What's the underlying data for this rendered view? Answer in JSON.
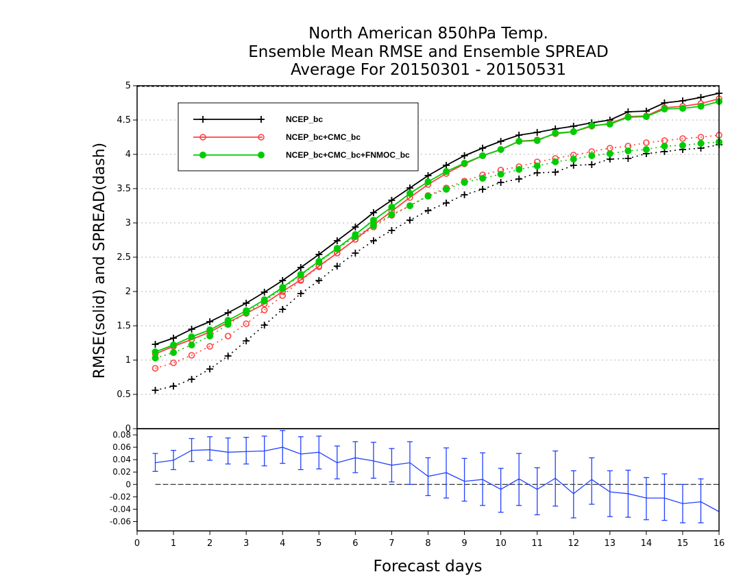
{
  "title_lines": [
    "North American 850hPa Temp.",
    "Ensemble Mean RMSE and Ensemble SPREAD",
    "Average For 20150301 - 20150531"
  ],
  "chart_data": [
    {
      "type": "line",
      "ylabel": "RMSE(solid)  and  SPREAD(dash)",
      "xlim": [
        0,
        16
      ],
      "ylim": [
        0,
        5
      ],
      "yticks": [
        0,
        0.5,
        1,
        1.5,
        2,
        2.5,
        3,
        3.5,
        4,
        4.5,
        5
      ],
      "grid": true,
      "legend_position": "top-left",
      "x": [
        0.5,
        1,
        1.5,
        2,
        2.5,
        3,
        3.5,
        4,
        4.5,
        5,
        5.5,
        6,
        6.5,
        7,
        7.5,
        8,
        8.5,
        9,
        9.5,
        10,
        10.5,
        11,
        11.5,
        12,
        12.5,
        13,
        13.5,
        14,
        14.5,
        15,
        15.5,
        16
      ],
      "series": [
        {
          "name": "NCEP_bc",
          "color": "#000000",
          "marker": "plus",
          "rmse": [
            1.23,
            1.32,
            1.45,
            1.56,
            1.69,
            1.83,
            1.99,
            2.16,
            2.35,
            2.54,
            2.74,
            2.94,
            3.15,
            3.33,
            3.51,
            3.69,
            3.84,
            3.98,
            4.09,
            4.19,
            4.28,
            4.32,
            4.37,
            4.41,
            4.46,
            4.5,
            4.62,
            4.63,
            4.75,
            4.78,
            4.83,
            4.89
          ],
          "spread": [
            0.56,
            0.62,
            0.72,
            0.87,
            1.06,
            1.28,
            1.51,
            1.74,
            1.97,
            2.16,
            2.37,
            2.56,
            2.74,
            2.89,
            3.04,
            3.18,
            3.29,
            3.41,
            3.49,
            3.59,
            3.64,
            3.73,
            3.74,
            3.84,
            3.85,
            3.93,
            3.94,
            4.01,
            4.04,
            4.07,
            4.09,
            4.14
          ]
        },
        {
          "name": "NCEP_bc+CMC_bc",
          "color": "#ff4040",
          "marker": "open-circle",
          "rmse": [
            1.09,
            1.2,
            1.3,
            1.41,
            1.55,
            1.68,
            1.82,
            2.0,
            2.17,
            2.37,
            2.56,
            2.76,
            2.97,
            3.17,
            3.37,
            3.56,
            3.72,
            3.86,
            3.98,
            4.07,
            4.19,
            4.21,
            4.3,
            4.33,
            4.41,
            4.45,
            4.55,
            4.56,
            4.68,
            4.7,
            4.74,
            4.81
          ],
          "spread": [
            0.88,
            0.96,
            1.07,
            1.2,
            1.35,
            1.53,
            1.73,
            1.94,
            2.16,
            2.36,
            2.56,
            2.76,
            2.94,
            3.11,
            3.25,
            3.4,
            3.51,
            3.61,
            3.7,
            3.77,
            3.82,
            3.89,
            3.94,
            3.99,
            4.04,
            4.09,
            4.12,
            4.17,
            4.2,
            4.23,
            4.25,
            4.28
          ]
        },
        {
          "name": "NCEP_bc+CMC_bc+FNMOC_bc",
          "color": "#00cc00",
          "marker": "filled-circle",
          "rmse": [
            1.12,
            1.22,
            1.34,
            1.44,
            1.58,
            1.72,
            1.88,
            2.06,
            2.25,
            2.44,
            2.63,
            2.83,
            3.04,
            3.23,
            3.43,
            3.6,
            3.75,
            3.87,
            3.98,
            4.07,
            4.19,
            4.2,
            4.31,
            4.33,
            4.42,
            4.44,
            4.54,
            4.55,
            4.66,
            4.67,
            4.7,
            4.77
          ],
          "spread": [
            1.03,
            1.11,
            1.22,
            1.35,
            1.52,
            1.69,
            1.86,
            2.04,
            2.24,
            2.43,
            2.62,
            2.8,
            2.96,
            3.12,
            3.25,
            3.39,
            3.49,
            3.59,
            3.65,
            3.71,
            3.78,
            3.83,
            3.89,
            3.93,
            3.98,
            4.01,
            4.05,
            4.07,
            4.12,
            4.13,
            4.16,
            4.18
          ]
        }
      ]
    },
    {
      "type": "line",
      "xlabel": "Forecast days",
      "xlim": [
        0,
        16
      ],
      "xticks": [
        0,
        1,
        2,
        3,
        4,
        5,
        6,
        7,
        8,
        9,
        10,
        11,
        12,
        13,
        14,
        15,
        16
      ],
      "ylim": [
        -0.075,
        0.09
      ],
      "yticks": [
        -0.06,
        -0.04,
        -0.02,
        0,
        0.02,
        0.04,
        0.06,
        0.08
      ],
      "ytick_labels": [
        "-0.06",
        "-0.04",
        "-0.02",
        "0",
        "0.02",
        "0.04",
        "0.06",
        "0.08"
      ],
      "zero_line": true,
      "color": "#2040ff",
      "x": [
        0.5,
        1,
        1.5,
        2,
        2.5,
        3,
        3.5,
        4,
        4.5,
        5,
        5.5,
        6,
        6.5,
        7,
        7.5,
        8,
        8.5,
        9,
        9.5,
        10,
        10.5,
        11,
        11.5,
        12,
        12.5,
        13,
        13.5,
        14,
        14.5,
        15,
        15.5,
        16
      ],
      "values": [
        0.035,
        0.039,
        0.055,
        0.056,
        0.052,
        0.053,
        0.054,
        0.06,
        0.049,
        0.052,
        0.035,
        0.043,
        0.038,
        0.031,
        0.035,
        0.013,
        0.019,
        0.005,
        0.008,
        -0.008,
        0.009,
        -0.008,
        0.01,
        -0.015,
        0.008,
        -0.012,
        -0.015,
        -0.022,
        -0.022,
        -0.031,
        -0.028,
        -0.044
      ],
      "error_lower": [
        0.021,
        0.024,
        0.037,
        0.039,
        0.033,
        0.033,
        0.03,
        0.034,
        0.024,
        0.025,
        0.009,
        0.019,
        0.01,
        0.004,
        0.0,
        -0.018,
        -0.022,
        -0.027,
        -0.034,
        -0.045,
        -0.034,
        -0.049,
        -0.035,
        -0.054,
        -0.032,
        -0.052,
        -0.053,
        -0.057,
        -0.058,
        -0.062,
        -0.062,
        -0.044
      ],
      "error_upper": [
        0.05,
        0.055,
        0.074,
        0.077,
        0.075,
        0.076,
        0.078,
        0.087,
        0.077,
        0.078,
        0.062,
        0.069,
        0.068,
        0.058,
        0.069,
        0.043,
        0.059,
        0.042,
        0.051,
        0.026,
        0.05,
        0.027,
        0.054,
        0.022,
        0.043,
        0.022,
        0.023,
        0.011,
        0.017,
        0.0,
        0.009,
        -0.044
      ]
    }
  ]
}
